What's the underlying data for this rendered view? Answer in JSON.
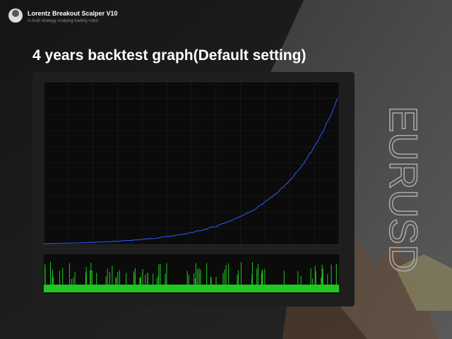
{
  "header": {
    "title": "Lorentz Breakout Scalper V10",
    "subtitle": "A multi strategy scalping trading robot"
  },
  "heading": "4 years backtest graph(Default setting)",
  "side_label": "EURUSD"
}
